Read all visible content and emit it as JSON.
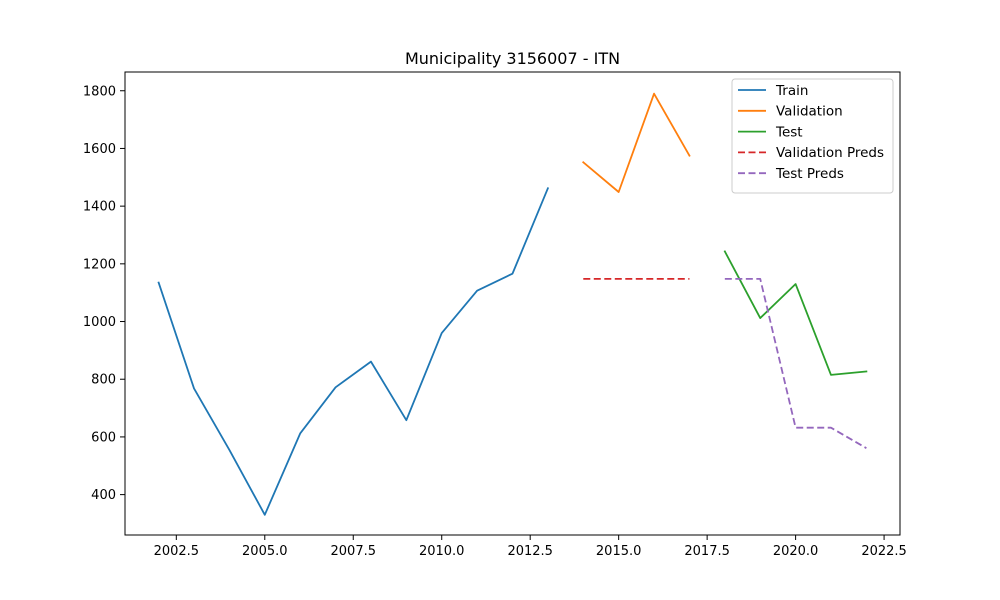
{
  "chart_data": {
    "type": "line",
    "title": "Municipality 3156007 - ITN",
    "xlabel": "",
    "ylabel": "",
    "xlim": [
      2001.05,
      2022.95
    ],
    "ylim": [
      260,
      1865
    ],
    "x_ticks": [
      2002.5,
      2005.0,
      2007.5,
      2010.0,
      2012.5,
      2015.0,
      2017.5,
      2020.0,
      2022.5
    ],
    "x_tick_labels": [
      "2002.5",
      "2005.0",
      "2007.5",
      "2010.0",
      "2012.5",
      "2015.0",
      "2017.5",
      "2020.0",
      "2022.5"
    ],
    "y_ticks": [
      400,
      600,
      800,
      1000,
      1200,
      1400,
      1600,
      1800
    ],
    "y_tick_labels": [
      "400",
      "600",
      "800",
      "1000",
      "1200",
      "1400",
      "1600",
      "1800"
    ],
    "grid": false,
    "legend_position": "top-right",
    "series": [
      {
        "name": "Train",
        "color": "#1f77b4",
        "dashed": false,
        "x": [
          2002,
          2003,
          2004,
          2005,
          2006,
          2007,
          2008,
          2009,
          2010,
          2011,
          2012,
          2013
        ],
        "values": [
          1135,
          768,
          555,
          330,
          612,
          772,
          861,
          658,
          960,
          1107,
          1166,
          1462
        ]
      },
      {
        "name": "Validation",
        "color": "#ff7f0e",
        "dashed": false,
        "x": [
          2014,
          2015,
          2016,
          2017
        ],
        "values": [
          1552,
          1449,
          1790,
          1575
        ]
      },
      {
        "name": "Test",
        "color": "#2ca02c",
        "dashed": false,
        "x": [
          2018,
          2019,
          2020,
          2021,
          2022
        ],
        "values": [
          1243,
          1012,
          1130,
          815,
          827
        ]
      },
      {
        "name": "Validation Preds",
        "color": "#d62728",
        "dashed": true,
        "x": [
          2014,
          2015,
          2016,
          2017
        ],
        "values": [
          1148,
          1148,
          1148,
          1148
        ]
      },
      {
        "name": "Test Preds",
        "color": "#9467bd",
        "dashed": true,
        "x": [
          2018,
          2019,
          2020,
          2021,
          2022
        ],
        "values": [
          1148,
          1148,
          632,
          632,
          561
        ]
      }
    ]
  }
}
